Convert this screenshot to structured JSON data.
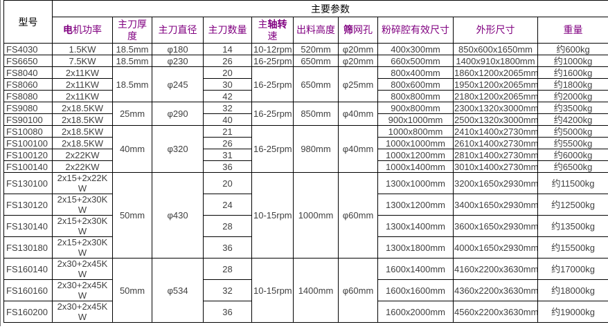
{
  "table": {
    "model_label": "型号",
    "main_params_label": "主要参数",
    "columns": [
      {
        "key": "power",
        "pre": "",
        "bold": "电",
        "post": "机功率"
      },
      {
        "key": "thickness",
        "pre": "主刀厚度",
        "bold": "",
        "post": ""
      },
      {
        "key": "diameter",
        "pre": "主刀直径",
        "bold": "",
        "post": ""
      },
      {
        "key": "blades",
        "pre": "主刀数量",
        "bold": "",
        "post": ""
      },
      {
        "key": "speed",
        "pre": "主",
        "bold": "轴转",
        "post": "速"
      },
      {
        "key": "height",
        "pre": "出料高度",
        "bold": "",
        "post": ""
      },
      {
        "key": "screen",
        "pre": "",
        "bold": "筛",
        "post": "网孔"
      },
      {
        "key": "chamber",
        "pre": "粉碎腔有效尺寸",
        "bold": "",
        "post": ""
      },
      {
        "key": "dims",
        "pre": "外形尺寸",
        "bold": "",
        "post": ""
      },
      {
        "key": "weight",
        "pre": "重量",
        "bold": "",
        "post": ""
      }
    ],
    "colors": {
      "header_accent": "#800080",
      "header_plain": "#000000",
      "data_text": "#404040",
      "border": "#000000"
    },
    "rows": [
      {
        "model": "FS4030",
        "cells": [
          [
            "power",
            "1.5KW"
          ],
          [
            "thickness",
            "18.5mm"
          ],
          [
            "diameter",
            "φ180"
          ],
          [
            "blades",
            "14"
          ],
          [
            "speed",
            "10-12rpm"
          ],
          [
            "height",
            "520mm"
          ],
          [
            "screen",
            "φ20mm"
          ],
          [
            "chamber",
            "400x300mm"
          ],
          [
            "dims",
            "850x600x1650mm"
          ],
          [
            "weight",
            "约600kg"
          ]
        ]
      },
      {
        "model": "FS6650",
        "cells": [
          [
            "power",
            "7.5KW"
          ],
          [
            "thickness",
            "18.5mm"
          ],
          [
            "diameter",
            "φ230"
          ],
          [
            "blades",
            "26"
          ],
          [
            "speed",
            "16-25rpm"
          ],
          [
            "height",
            "650mm"
          ],
          [
            "screen",
            "φ20mm"
          ],
          [
            "chamber",
            "660x500mm"
          ],
          [
            "dims",
            "1400x910x1800mm"
          ],
          [
            "weight",
            "约1000kg"
          ]
        ]
      },
      {
        "model": "FS8040",
        "cells": [
          [
            "power",
            "2x11KW"
          ],
          [
            "thickness",
            "18.5mm",
            3
          ],
          [
            "diameter",
            "φ245",
            3
          ],
          [
            "blades",
            "20"
          ],
          [
            "speed",
            "16-25rpm",
            3
          ],
          [
            "height",
            "650mm",
            3
          ],
          [
            "screen",
            "φ25mm",
            3
          ],
          [
            "chamber",
            "800x400mm"
          ],
          [
            "dims",
            "1860x1200x2065mm"
          ],
          [
            "weight",
            "约1600kg"
          ]
        ]
      },
      {
        "model": "FS8060",
        "cells": [
          [
            "power",
            "2x11KW"
          ],
          [
            "blades",
            "30"
          ],
          [
            "chamber",
            "800x600mm"
          ],
          [
            "dims",
            "1950x1200x2065mm"
          ],
          [
            "weight",
            "约1800kg"
          ]
        ]
      },
      {
        "model": "FS8080",
        "cells": [
          [
            "power",
            "2x11KW"
          ],
          [
            "blades",
            "42"
          ],
          [
            "chamber",
            "800x800mm"
          ],
          [
            "dims",
            "2180x1200x2065mm"
          ],
          [
            "weight",
            "约2000kg"
          ]
        ]
      },
      {
        "model": "FS9080",
        "cells": [
          [
            "power",
            "2x18.5KW"
          ],
          [
            "thickness",
            "25mm",
            2
          ],
          [
            "diameter",
            "φ290",
            2
          ],
          [
            "blades",
            "32"
          ],
          [
            "speed",
            "16-25rpm",
            2
          ],
          [
            "height",
            "850mm",
            2
          ],
          [
            "screen",
            "φ40mm",
            2
          ],
          [
            "chamber",
            "900x800mm"
          ],
          [
            "dims",
            "2300x1320x3000mm"
          ],
          [
            "weight",
            "约3500kg"
          ]
        ]
      },
      {
        "model": "FS90100",
        "cells": [
          [
            "power",
            "2x18.5KW"
          ],
          [
            "blades",
            "40"
          ],
          [
            "chamber",
            "900x1000mm"
          ],
          [
            "dims",
            "2500x1320x3000mm"
          ],
          [
            "weight",
            "约4200kg"
          ]
        ]
      },
      {
        "model": "FS10080",
        "cells": [
          [
            "power",
            "2x18.5KW"
          ],
          [
            "thickness",
            "40mm",
            4
          ],
          [
            "diameter",
            "φ320",
            4
          ],
          [
            "blades",
            "21"
          ],
          [
            "speed",
            "16-25rpm",
            4
          ],
          [
            "height",
            "980mm",
            4
          ],
          [
            "screen",
            "φ40mm",
            4
          ],
          [
            "chamber",
            "1000x800mm"
          ],
          [
            "dims",
            "2410x1400x2730mm"
          ],
          [
            "weight",
            "约5000kg"
          ]
        ]
      },
      {
        "model": "FS100100",
        "cells": [
          [
            "power",
            "2x18.5KW"
          ],
          [
            "blades",
            "26"
          ],
          [
            "chamber",
            "1000x1000mm"
          ],
          [
            "dims",
            "2610x1400x2730mm"
          ],
          [
            "weight",
            "约5500kg"
          ]
        ]
      },
      {
        "model": "FS100120",
        "cells": [
          [
            "power",
            "2x22KW"
          ],
          [
            "blades",
            "31"
          ],
          [
            "chamber",
            "1000x1200mm"
          ],
          [
            "dims",
            "2810x1400x2730mm"
          ],
          [
            "weight",
            "约6000kg"
          ]
        ]
      },
      {
        "model": "FS100140",
        "cells": [
          [
            "power",
            "2x22KW"
          ],
          [
            "blades",
            "36"
          ],
          [
            "chamber",
            "1000x1400mm"
          ],
          [
            "dims",
            "3010x1400x2730mm"
          ],
          [
            "weight",
            "约6500kg"
          ]
        ]
      },
      {
        "model": "FS130100",
        "cells": [
          [
            "power",
            "2x15+2x22KW"
          ],
          [
            "thickness",
            "50mm",
            4
          ],
          [
            "diameter",
            "φ430",
            4
          ],
          [
            "blades",
            "20"
          ],
          [
            "speed",
            "10-15rpm",
            4
          ],
          [
            "height",
            "1000mm",
            4
          ],
          [
            "screen",
            "φ60mm",
            4
          ],
          [
            "chamber",
            "1300x1000mm"
          ],
          [
            "dims",
            "3200x1650x2930mm"
          ],
          [
            "weight",
            "约11500kg"
          ]
        ]
      },
      {
        "model": "FS130120",
        "cells": [
          [
            "power",
            "2x15+2x30KW"
          ],
          [
            "blades",
            "24"
          ],
          [
            "chamber",
            "1300x1200mm"
          ],
          [
            "dims",
            "3400x1650x2930mm"
          ],
          [
            "weight",
            "约12500kg"
          ]
        ]
      },
      {
        "model": "FS130140",
        "cells": [
          [
            "power",
            "2x15+2x30KW"
          ],
          [
            "blades",
            "28"
          ],
          [
            "chamber",
            "1300x1400mm"
          ],
          [
            "dims",
            "3600x1650x2930mm"
          ],
          [
            "weight",
            "约13500kg"
          ]
        ]
      },
      {
        "model": "FS130180",
        "cells": [
          [
            "power",
            "2x15+2x30KW"
          ],
          [
            "blades",
            "36"
          ],
          [
            "chamber",
            "1300x1800mm"
          ],
          [
            "dims",
            "4000x1650x2930mm"
          ],
          [
            "weight",
            "约15500kg"
          ]
        ]
      },
      {
        "model": "FS160140",
        "cells": [
          [
            "power",
            "2x30+2x45KW"
          ],
          [
            "thickness",
            "50mm",
            3
          ],
          [
            "diameter",
            "φ534",
            3
          ],
          [
            "blades",
            "28"
          ],
          [
            "speed",
            "10-15rpm",
            3
          ],
          [
            "height",
            "1400mm",
            3
          ],
          [
            "screen",
            "φ60mm",
            3
          ],
          [
            "chamber",
            "1600x1400mm"
          ],
          [
            "dims",
            "4160x2200x3630mm"
          ],
          [
            "weight",
            "约17000kg"
          ]
        ]
      },
      {
        "model": "FS160160",
        "cells": [
          [
            "power",
            "2x30+2x45KW"
          ],
          [
            "blades",
            "32"
          ],
          [
            "chamber",
            "1600x1600mm"
          ],
          [
            "dims",
            "4360x2200x3630mm"
          ],
          [
            "weight",
            "约18000kg"
          ]
        ]
      },
      {
        "model": "FS160200",
        "cells": [
          [
            "power",
            "2x30+2x45KW"
          ],
          [
            "blades",
            "36"
          ],
          [
            "chamber",
            "1600x2000mm"
          ],
          [
            "dims",
            "4560x2200x3630mm"
          ],
          [
            "weight",
            "约19000kg"
          ]
        ]
      }
    ]
  }
}
